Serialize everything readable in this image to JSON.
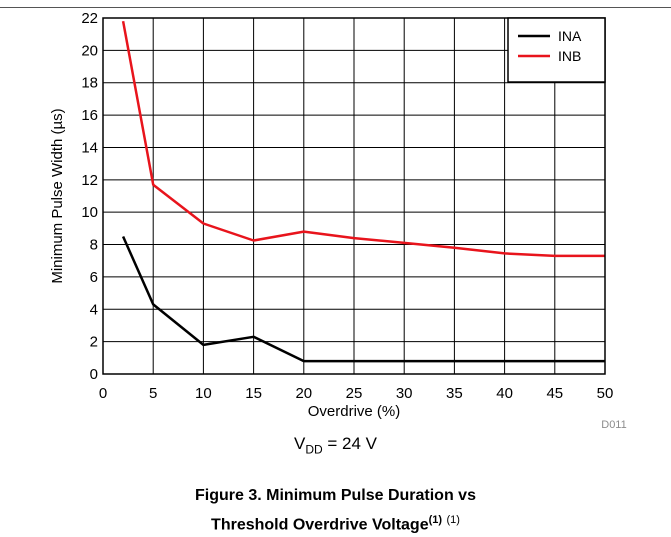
{
  "chart_data": {
    "type": "line",
    "xlabel": "Overdrive (%)",
    "ylabel": "Minimum Pulse Width (µs)",
    "xlim": [
      0,
      50
    ],
    "ylim": [
      0,
      22
    ],
    "xticks": [
      0,
      5,
      10,
      15,
      20,
      25,
      30,
      35,
      40,
      45,
      50
    ],
    "yticks": [
      0,
      2,
      4,
      6,
      8,
      10,
      12,
      14,
      16,
      18,
      20,
      22
    ],
    "grid": true,
    "legend_position": "top-right",
    "series": [
      {
        "name": "INA",
        "color": "#000000",
        "x": [
          2,
          5,
          10,
          15,
          20,
          25,
          30,
          35,
          40,
          45,
          50
        ],
        "y": [
          8.5,
          4.3,
          1.8,
          2.3,
          0.8,
          0.8,
          0.8,
          0.8,
          0.8,
          0.8,
          0.8
        ]
      },
      {
        "name": "INB",
        "color": "#e8141c",
        "x": [
          2,
          5,
          10,
          15,
          20,
          25,
          30,
          35,
          40,
          45,
          50
        ],
        "y": [
          21.8,
          11.7,
          9.3,
          8.25,
          8.8,
          8.4,
          8.1,
          7.8,
          7.45,
          7.3,
          7.3
        ]
      }
    ],
    "annotation": "D011"
  },
  "condition": {
    "prefix": "V",
    "subscript": "DD",
    "suffix": " = 24 V"
  },
  "caption": {
    "line1": "Figure 3. Minimum Pulse Duration vs",
    "line2": "Threshold Overdrive Voltage",
    "note_ref": "(1)",
    "note_ref_plain": "(1)"
  }
}
